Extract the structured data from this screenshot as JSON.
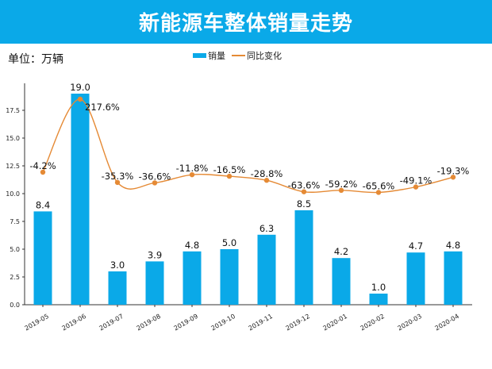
{
  "header": {
    "title": "新能源车整体销量走势"
  },
  "unit_label": "单位：万辆",
  "chart_data": {
    "type": "bar",
    "title": "新能源车整体销量走势",
    "xlabel": "",
    "ylabel": "单位：万辆",
    "ylim": [
      0,
      19.6
    ],
    "yticks": [
      "0.0",
      "2.5",
      "5.0",
      "7.5",
      "10.0",
      "12.5",
      "15.0",
      "17.5"
    ],
    "legend_position": "top-center",
    "categories": [
      "2019-05",
      "2019-06",
      "2019-07",
      "2019-08",
      "2019-09",
      "2019-10",
      "2019-11",
      "2019-12",
      "2020-01",
      "2020-02",
      "2020-03",
      "2020-04"
    ],
    "series": [
      {
        "name": "销量",
        "type": "bar",
        "color": "#0aa9e8",
        "values": [
          8.4,
          19.0,
          3.0,
          3.9,
          4.8,
          5.0,
          6.3,
          8.5,
          4.2,
          1.0,
          4.7,
          4.8
        ],
        "labels": [
          "8.4",
          "19.0",
          "3.0",
          "3.9",
          "4.8",
          "5.0",
          "6.3",
          "8.5",
          "4.2",
          "1.0",
          "4.7",
          "4.8"
        ]
      },
      {
        "name": "同比变化",
        "type": "line",
        "color": "#e58a35",
        "unit": "%",
        "values": [
          -4.2,
          217.6,
          -35.3,
          -36.6,
          -11.8,
          -16.5,
          -28.8,
          -63.6,
          -59.2,
          -65.6,
          -49.1,
          -19.3
        ],
        "labels": [
          "-4.2%",
          "217.6%",
          "-35.3%",
          "-36.6%",
          "-11.8%",
          "-16.5%",
          "-28.8%",
          "-63.6%",
          "-59.2%",
          "-65.6%",
          "-49.1%",
          "-19.3%"
        ]
      }
    ]
  }
}
